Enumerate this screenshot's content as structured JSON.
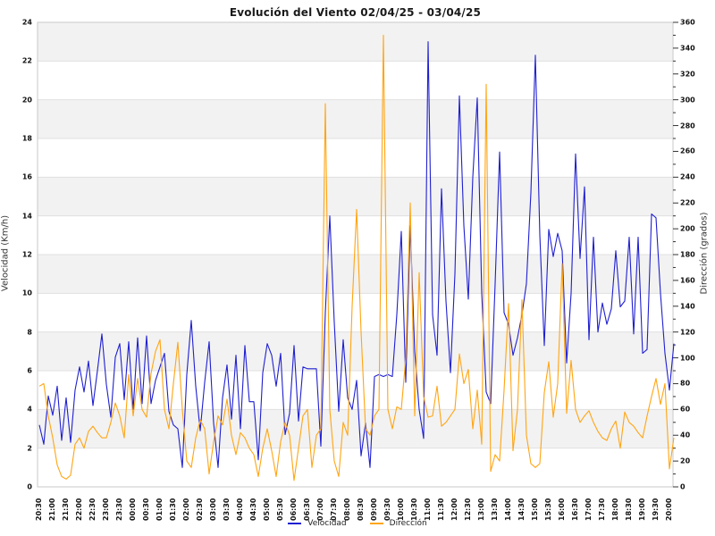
{
  "chart_data": {
    "type": "line",
    "title": "Evolución del Viento 02/04/25 - 03/04/25",
    "left_axis": {
      "label": "Velocidad (Km/h)",
      "min": 0,
      "max": 24,
      "step": 2
    },
    "right_axis": {
      "label": "Dirección (grados)",
      "min": 0,
      "max": 360,
      "step": 20,
      "minor_step": 10
    },
    "x_tick_labels": [
      "20:30",
      "21:00",
      "21:30",
      "22:00",
      "22:30",
      "23:00",
      "23:30",
      "00:00",
      "00:30",
      "01:00",
      "01:30",
      "02:00",
      "02:30",
      "03:00",
      "03:30",
      "04:00",
      "04:30",
      "05:00",
      "05:30",
      "06:00",
      "06:30",
      "07:00",
      "07:30",
      "08:00",
      "08:30",
      "09:00",
      "09:30",
      "10:00",
      "10:30",
      "11:00",
      "11:30",
      "12:00",
      "12:30",
      "13:00",
      "13:30",
      "14:00",
      "14:30",
      "15:00",
      "15:30",
      "16:00",
      "16:30",
      "17:00",
      "17:30",
      "18:00",
      "18:30",
      "19:00",
      "19:30",
      "20:00"
    ],
    "points_per_tick_interval": 3,
    "sample_interval_minutes": 10,
    "grid": "horizontal gridlines every 2 units with alternating gray bands",
    "band_color": "#f2f2f2",
    "grid_color": "#e0e0e0",
    "border_color": "#c9c9c9",
    "legend_position": "bottom-center",
    "series": [
      {
        "name": "Velocidad",
        "axis": "left",
        "unit": "Km/h",
        "color": "#1f1fd1",
        "values": [
          3.2,
          2.2,
          4.7,
          3.7,
          5.2,
          2.4,
          4.6,
          2.3,
          5.0,
          6.2,
          4.9,
          6.5,
          4.2,
          6.0,
          7.9,
          5.3,
          3.6,
          6.7,
          7.4,
          4.5,
          7.5,
          4.0,
          7.7,
          4.3,
          7.8,
          4.3,
          5.5,
          6.2,
          6.9,
          3.9,
          3.2,
          3.0,
          1.0,
          5.8,
          8.6,
          5.2,
          2.9,
          5.4,
          7.5,
          3.3,
          1.0,
          4.6,
          6.3,
          3.5,
          6.8,
          3.0,
          7.3,
          4.4,
          4.4,
          1.4,
          5.9,
          7.4,
          6.8,
          5.2,
          6.9,
          2.7,
          3.8,
          7.3,
          3.4,
          6.2,
          6.1,
          6.1,
          6.1,
          2.1,
          9.0,
          14.0,
          8.5,
          3.9,
          7.6,
          4.6,
          4.0,
          5.5,
          1.6,
          3.3,
          1.0,
          5.7,
          5.8,
          5.7,
          5.8,
          5.7,
          8.9,
          13.2,
          5.4,
          13.5,
          7.0,
          4.0,
          2.5,
          23.0,
          8.9,
          6.8,
          15.4,
          9.6,
          5.9,
          11.0,
          20.2,
          13.5,
          9.7,
          16.0,
          20.1,
          10.0,
          4.9,
          4.3,
          10.5,
          17.3,
          9.0,
          8.4,
          6.8,
          7.7,
          8.9,
          10.5,
          15.2,
          22.3,
          13.0,
          7.3,
          13.3,
          11.9,
          13.1,
          12.2,
          6.4,
          10.0,
          17.2,
          11.8,
          15.5,
          7.6,
          12.9,
          8.0,
          9.5,
          8.4,
          9.2,
          12.2,
          9.3,
          9.6,
          12.9,
          7.9,
          12.9,
          6.9,
          7.1,
          14.1,
          13.9,
          10.0,
          6.9,
          5.0,
          7.4
        ]
      },
      {
        "name": "Dirección",
        "axis": "right",
        "unit": "grados",
        "color": "#ffa513",
        "values": [
          78,
          80,
          55,
          38,
          17,
          8,
          6,
          9,
          33,
          38,
          30,
          43,
          47,
          42,
          38,
          38,
          50,
          65,
          55,
          38,
          87,
          55,
          84,
          60,
          54,
          88,
          105,
          114,
          60,
          45,
          80,
          112,
          60,
          20,
          15,
          38,
          52,
          45,
          10,
          35,
          55,
          48,
          68,
          40,
          25,
          42,
          38,
          30,
          25,
          8,
          30,
          45,
          28,
          8,
          35,
          50,
          40,
          5,
          30,
          55,
          60,
          15,
          40,
          45,
          297,
          60,
          20,
          8,
          50,
          40,
          140,
          215,
          120,
          45,
          40,
          55,
          60,
          350,
          60,
          45,
          62,
          60,
          100,
          220,
          55,
          166,
          70,
          54,
          55,
          78,
          47,
          50,
          55,
          60,
          103,
          80,
          91,
          45,
          75,
          33,
          312,
          12,
          25,
          20,
          75,
          142,
          28,
          60,
          145,
          40,
          18,
          15,
          18,
          73,
          97,
          54,
          80,
          173,
          57,
          98,
          60,
          50,
          55,
          59,
          50,
          43,
          38,
          36,
          45,
          51,
          30,
          58,
          50,
          47,
          42,
          38,
          55,
          70,
          84,
          64,
          80,
          14,
          38
        ]
      }
    ],
    "legend": [
      {
        "label": "Velocidad",
        "color": "#1f1fd1"
      },
      {
        "label": "Dirección",
        "color": "#ffa513"
      }
    ]
  }
}
